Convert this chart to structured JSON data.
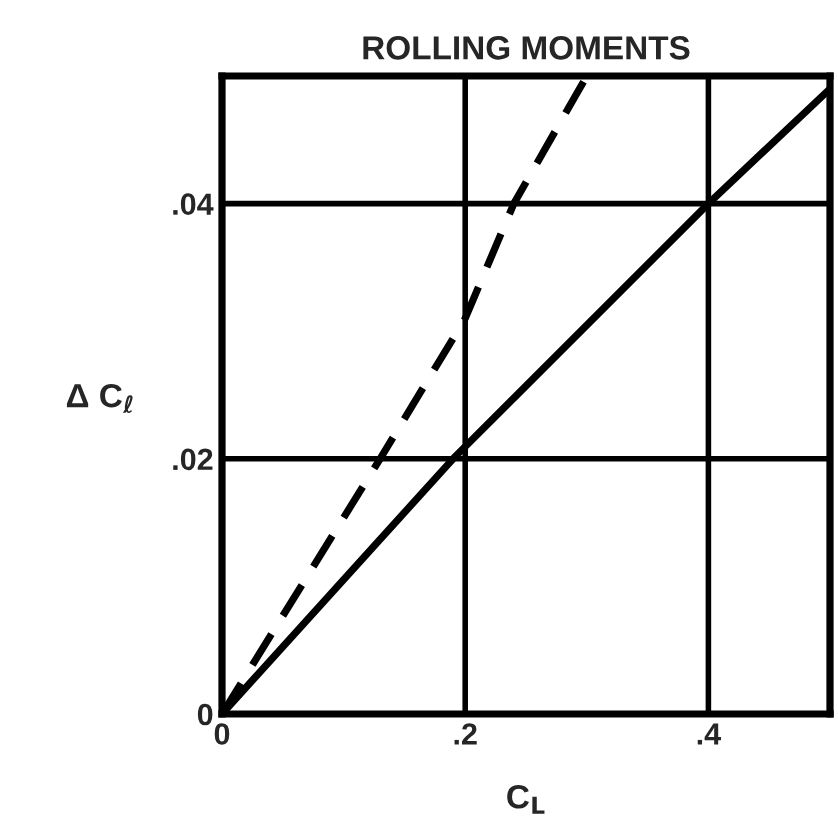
{
  "chart_data": {
    "type": "line",
    "title": "ROLLING MOMENTS",
    "xlabel": "C$_{L}$",
    "ylabel": "Δ C$_{ℓ}$",
    "series": [
      {
        "x": [
          0,
          0.19,
          0.4,
          0.5
        ],
        "values": [
          0,
          0.02,
          0.04,
          0.049
        ],
        "color": "#000000",
        "line_style": "solid"
      },
      {
        "x": [
          0,
          0.13,
          0.2,
          0.24,
          0.3
        ],
        "values": [
          0,
          0.02,
          0.031,
          0.04,
          0.05
        ],
        "color": "#000000",
        "line_style": "dashed"
      }
    ],
    "xlim": [
      0,
      0.5
    ],
    "ylim": [
      0,
      0.05
    ],
    "xticks": [
      0,
      {
        "value": 0.2,
        "label": ".2"
      },
      {
        "value": 0.4,
        "label": ".4"
      }
    ],
    "yticks": [
      0,
      {
        "value": 0.02,
        "label": ".02"
      },
      {
        "value": 0.04,
        "label": ".04"
      }
    ],
    "grid": true,
    "legend": false
  }
}
